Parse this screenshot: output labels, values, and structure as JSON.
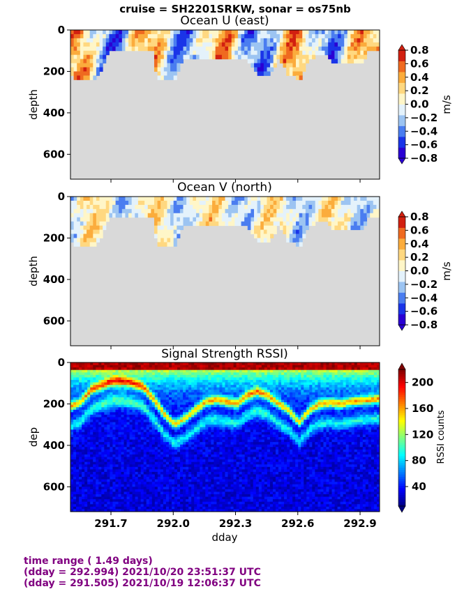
{
  "suptitle": "cruise = SH2201SRKW,  sonar = os75nb",
  "footer": {
    "line1": "time range ( 1.49 days)",
    "line2": "(dday = 292.994) 2021/10/20 23:51:37 UTC",
    "line3": "(dday = 291.505) 2021/10/19 12:06:37 UTC"
  },
  "colors": {
    "nodata": "#d9d9d9",
    "diverging": [
      "#2a00d4",
      "#1a34e8",
      "#4a7df0",
      "#9cc4f2",
      "#e4f2fb",
      "#fff6c8",
      "#ffd880",
      "#fbac3c",
      "#ef6a20",
      "#d22010"
    ],
    "jet": [
      "#00007f",
      "#0000ff",
      "#007fff",
      "#00ffff",
      "#7fff7f",
      "#ffff00",
      "#ff7f00",
      "#ff0000",
      "#7f0000"
    ],
    "footer_text": "#800080"
  },
  "chart_data": [
    {
      "type": "heatmap",
      "title": "Ocean U (east)",
      "xlabel": "",
      "ylabel": "depth",
      "xlim": [
        291.505,
        292.994
      ],
      "ylim": [
        720,
        0
      ],
      "yticks": [
        "0",
        "200",
        "400",
        "600"
      ],
      "colorbar": {
        "label": "m/s",
        "range": [
          -0.8,
          0.8
        ],
        "ticks": [
          "0.8",
          "0.6",
          "0.4",
          "0.2",
          "0.0",
          "−0.2",
          "−0.4",
          "−0.6",
          "−0.8"
        ]
      },
      "bottom_depth_profile": {
        "dday": [
          291.505,
          291.52,
          291.59,
          291.6,
          291.63,
          291.68,
          291.7,
          291.73,
          291.82,
          291.9,
          291.91,
          291.96,
          292.0,
          292.04,
          292.2,
          292.21,
          292.3,
          292.35,
          292.4,
          292.46,
          292.5,
          292.55,
          292.58,
          292.61,
          292.64,
          292.72,
          292.76,
          292.84,
          292.9,
          292.94,
          292.994
        ],
        "depth": [
          215,
          240,
          245,
          240,
          225,
          110,
          105,
          105,
          105,
          105,
          230,
          240,
          235,
          130,
          130,
          140,
          130,
          140,
          225,
          225,
          130,
          225,
          230,
          230,
          145,
          110,
          165,
          160,
          165,
          90,
          90
        ]
      }
    },
    {
      "type": "heatmap",
      "title": "Ocean V (north)",
      "xlabel": "",
      "ylabel": "depth",
      "xlim": [
        291.505,
        292.994
      ],
      "ylim": [
        720,
        0
      ],
      "yticks": [
        "0",
        "200",
        "400",
        "600"
      ],
      "colorbar": {
        "label": "m/s",
        "range": [
          -0.8,
          0.8
        ],
        "ticks": [
          "0.8",
          "0.6",
          "0.4",
          "0.2",
          "0.0",
          "−0.2",
          "−0.4",
          "−0.6",
          "−0.8"
        ]
      }
    },
    {
      "type": "heatmap",
      "title": "Signal Strength RSSI)",
      "xlabel": "dday",
      "ylabel": "dep",
      "xlim": [
        291.505,
        292.994
      ],
      "ylim": [
        720,
        0
      ],
      "xticks": [
        "291.7",
        "292.0",
        "292.3",
        "292.6",
        "292.9"
      ],
      "xtick_values": [
        291.7,
        292.0,
        292.3,
        292.6,
        292.9
      ],
      "yticks": [
        "0",
        "200",
        "400",
        "600"
      ],
      "colorbar": {
        "label": "RSSI counts",
        "range": [
          10,
          220
        ],
        "ticks": [
          "200",
          "160",
          "120",
          "80",
          "40"
        ]
      },
      "scattering_layer_depth": {
        "dday": [
          291.505,
          291.55,
          291.6,
          291.65,
          291.7,
          291.75,
          291.8,
          291.85,
          291.9,
          291.95,
          292.0,
          292.05,
          292.1,
          292.15,
          292.2,
          292.25,
          292.3,
          292.35,
          292.4,
          292.45,
          292.5,
          292.55,
          292.6,
          292.65,
          292.7,
          292.75,
          292.8,
          292.85,
          292.9,
          292.95,
          292.994
        ],
        "depth": [
          210,
          190,
          130,
          110,
          90,
          90,
          100,
          120,
          180,
          250,
          300,
          270,
          230,
          190,
          180,
          190,
          200,
          160,
          140,
          160,
          200,
          230,
          290,
          230,
          200,
          195,
          200,
          190,
          185,
          180,
          175
        ]
      }
    }
  ]
}
